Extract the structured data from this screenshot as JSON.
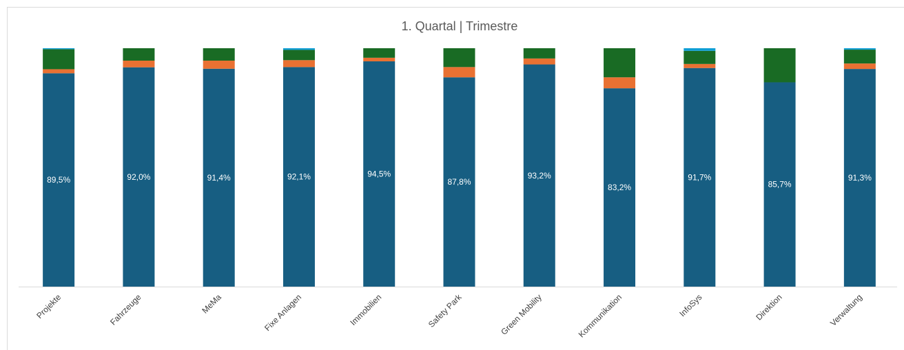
{
  "chart_data": {
    "type": "stacked_bar_100",
    "title": "1. Quartal | Trimestre",
    "categories": [
      "Projekte",
      "Fahrzeuge",
      "MeMa",
      "Fixe Anlagen",
      "Immobilien",
      "Safety Park",
      "Green Mobility",
      "Kommunikation",
      "InfoSys",
      "Direktion",
      "Verwaltung"
    ],
    "series": [
      {
        "color": "#175e82",
        "values": [
          89.5,
          92.0,
          91.4,
          92.1,
          94.5,
          87.8,
          93.2,
          83.2,
          91.7,
          85.7,
          91.3
        ],
        "value_labels": [
          "89,5%",
          "92,0%",
          "91,4%",
          "92,1%",
          "94,5%",
          "87,8%",
          "93,2%",
          "83,2%",
          "91,7%",
          "85,7%",
          "91,3%"
        ]
      },
      {
        "color": "#e97132",
        "values": [
          1.7,
          2.8,
          3.4,
          2.9,
          1.5,
          4.3,
          2.5,
          4.6,
          1.7,
          0,
          2.3
        ]
      },
      {
        "color": "#196b24",
        "values": [
          8.4,
          5.2,
          5.2,
          4.3,
          4.0,
          7.9,
          4.3,
          12.2,
          5.5,
          14.3,
          5.8
        ]
      },
      {
        "color": "#0f9ed5",
        "values": [
          0.4,
          0,
          0,
          0.7,
          0,
          0,
          0,
          0,
          1.1,
          0,
          0.6
        ]
      }
    ],
    "ylim": [
      0,
      100
    ]
  }
}
